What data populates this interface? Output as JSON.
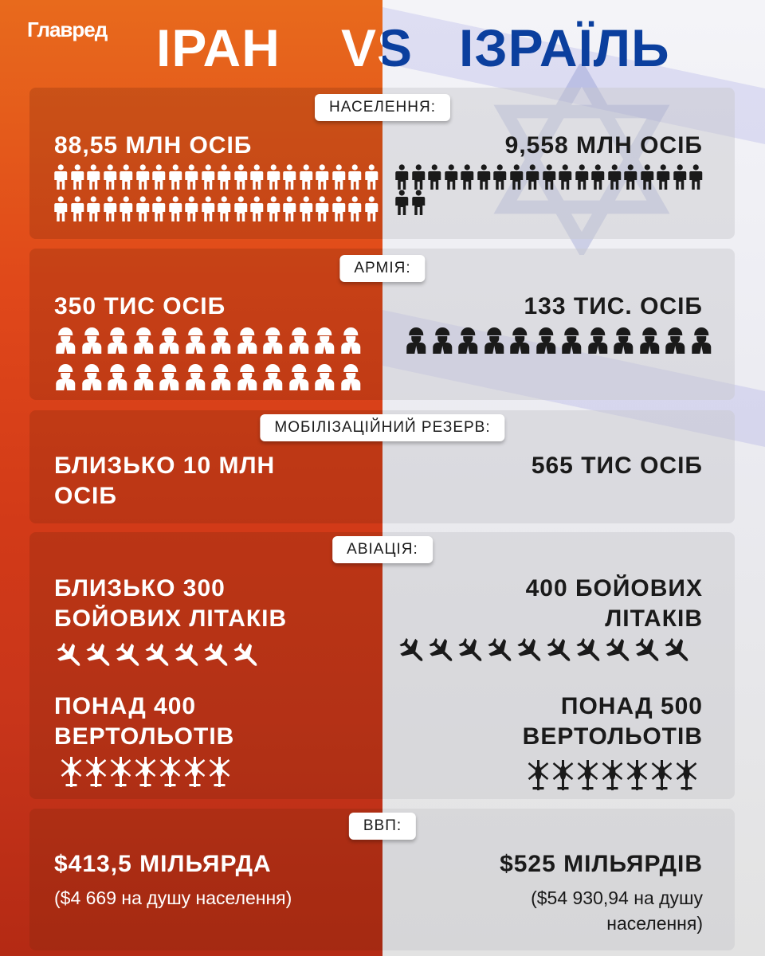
{
  "logo": "Главред",
  "title": {
    "left": "ІРАН",
    "vs": "VS",
    "right": "ІЗРАЇЛЬ"
  },
  "colors": {
    "iran_bg": "#d8401a",
    "israel_bg": "#ececf2",
    "israel_blue": "#0b3f9e"
  },
  "population": {
    "label": "НАСЕЛЕННЯ:",
    "iran": "88,55 МЛН ОСІБ",
    "israel": "9,558 МЛН ОСІБ",
    "iran_icons": 40,
    "israel_icons": 21,
    "icon": "person-icon"
  },
  "army": {
    "label": "АРМІЯ:",
    "iran": "350 ТИС ОСІБ",
    "israel": "133 ТИС. ОСІБ",
    "iran_icons": 24,
    "israel_icons": 12,
    "icon": "soldier-icon"
  },
  "reserve": {
    "label": "МОБІЛІЗАЦІЙНИЙ РЕЗЕРВ:",
    "iran_line1": "БЛИЗЬКО 10 МЛН",
    "iran_line2": "ОСІБ",
    "israel": "565 ТИС ОСІБ"
  },
  "aviation": {
    "label": "АВІАЦІЯ:",
    "iran_planes_line1": "БЛИЗЬКО 300",
    "iran_planes_line2": "БОЙОВИХ ЛІТАКІВ",
    "israel_planes_line1": "400 БОЙОВИХ",
    "israel_planes_line2": "ЛІТАКІВ",
    "iran_plane_icons": 7,
    "israel_plane_icons": 10,
    "iran_heli_line1": "ПОНАД 400",
    "iran_heli_line2": "ВЕРТОЛЬОТІВ",
    "israel_heli_line1": "ПОНАД 500",
    "israel_heli_line2": "ВЕРТОЛЬОТІВ",
    "iran_heli_icons": 7,
    "israel_heli_icons": 7
  },
  "gdp": {
    "label": "ВВП:",
    "iran": "$413,5 МІЛЬЯРДА",
    "iran_sub": "($4 669 на душу населення)",
    "israel": "$525 МІЛЬЯРДІВ",
    "israel_sub_line1": "($54 930,94 на душу",
    "israel_sub_line2": "населення)"
  }
}
